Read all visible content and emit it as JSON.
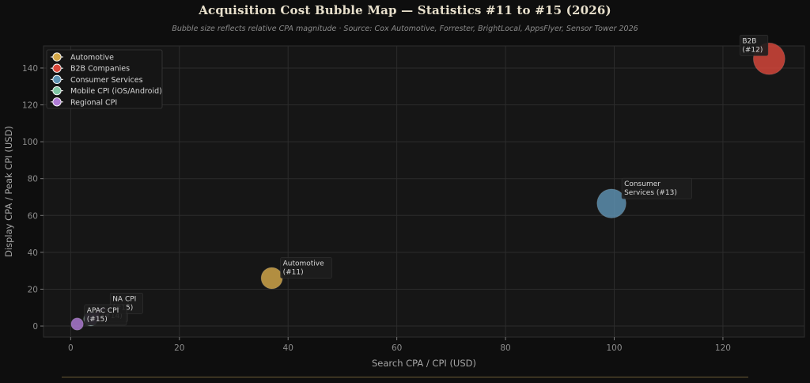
{
  "title": "Acquisition Cost Bubble Map — Statistics #11 to #15 (2026)",
  "subtitle": "Bubble size reflects relative CPA magnitude · Source: Cox Automotive, Forrester, BrightLocal, AppsFlyer, Sensor Tower 2026",
  "chart_data": {
    "type": "scatter",
    "xlabel": "Search CPA / CPI (USD)",
    "ylabel": "Display CPA / Peak CPI (USD)",
    "xlim": [
      -5,
      135
    ],
    "ylim": [
      -6,
      152
    ],
    "x_ticks": [
      0,
      20,
      40,
      60,
      80,
      100,
      120
    ],
    "y_ticks": [
      0,
      20,
      40,
      60,
      80,
      100,
      120,
      140
    ],
    "grid": true,
    "legend_position": "top-left",
    "series": [
      {
        "name": "Automotive",
        "color": "#d4a84a",
        "points": [
          {
            "x": 37,
            "y": 26,
            "size": 37,
            "label": "Automotive\n(#11)"
          }
        ]
      },
      {
        "name": "B2B Companies",
        "color": "#d9473a",
        "points": [
          {
            "x": 128.5,
            "y": 145,
            "size": 128.5,
            "label": "B2B\n(#12)"
          }
        ]
      },
      {
        "name": "Consumer Services",
        "color": "#5e93b3",
        "points": [
          {
            "x": 99.5,
            "y": 66.5,
            "size": 99.5,
            "label": "Consumer\nServices (#13)"
          }
        ]
      },
      {
        "name": "Mobile CPI (iOS/Android)",
        "color": "#7fc6a4",
        "points": [
          {
            "x": 3.7,
            "y": 3.9,
            "size": 6,
            "label": "(#14)"
          }
        ]
      },
      {
        "name": "Regional CPI",
        "color": "#b07cd6",
        "points": [
          {
            "x": 1.2,
            "y": 1.1,
            "size": 2,
            "label": ""
          },
          {
            "x": 5.8,
            "y": 5.9,
            "size": 6,
            "label": "NA CPI\n(#15)"
          },
          {
            "x": 3.7,
            "y": 3.9,
            "size": 4,
            "label": "APAC CPI\n(#15)"
          }
        ]
      }
    ]
  }
}
